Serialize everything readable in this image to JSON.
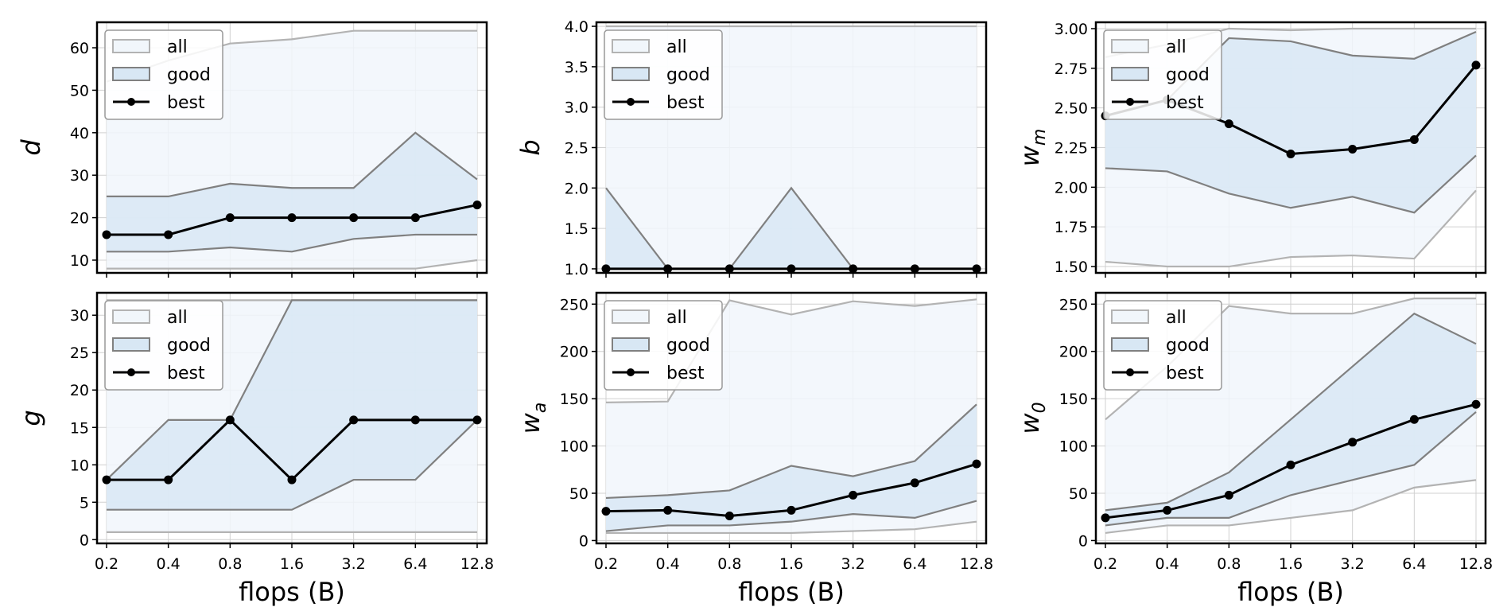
{
  "figure": {
    "x_ticks": [
      "0.2",
      "0.4",
      "0.8",
      "1.6",
      "3.2",
      "6.4",
      "12.8"
    ],
    "xlabel": "flops (B)",
    "legend": [
      "all",
      "good",
      "best"
    ]
  },
  "colors": {
    "all_fill": "#f1f6fb",
    "good_fill": "#d8e7f4",
    "all_line": "#b3b3b3",
    "good_line": "#808080",
    "best_line": "#000000",
    "grid": "#d0d0d0"
  },
  "chart_data": [
    {
      "type": "line",
      "ylabel": "d",
      "ylabel_sub": "",
      "x": [
        0.2,
        0.4,
        0.8,
        1.6,
        3.2,
        6.4,
        12.8
      ],
      "ylim": [
        7,
        66
      ],
      "yticks": [
        10,
        20,
        30,
        40,
        50,
        60
      ],
      "ytick_labels": [
        "10",
        "20",
        "30",
        "40",
        "50",
        "60"
      ],
      "all_min": [
        8,
        8,
        8,
        8,
        8,
        8,
        10
      ],
      "all_max": [
        52,
        57,
        61,
        62,
        64,
        64,
        64
      ],
      "good_min": [
        12,
        12,
        13,
        12,
        15,
        16,
        16
      ],
      "good_max": [
        25,
        25,
        28,
        27,
        27,
        40,
        29
      ],
      "best": [
        16,
        16,
        20,
        20,
        20,
        20,
        23
      ]
    },
    {
      "type": "line",
      "ylabel": "b",
      "ylabel_sub": "",
      "x": [
        0.2,
        0.4,
        0.8,
        1.6,
        3.2,
        6.4,
        12.8
      ],
      "ylim": [
        0.95,
        4.05
      ],
      "yticks": [
        1.0,
        1.5,
        2.0,
        2.5,
        3.0,
        3.5,
        4.0
      ],
      "ytick_labels": [
        "1.0",
        "1.5",
        "2.0",
        "2.5",
        "3.0",
        "3.5",
        "4.0"
      ],
      "all_min": [
        1,
        1,
        1,
        1,
        1,
        1,
        1
      ],
      "all_max": [
        4,
        4,
        4,
        4,
        4,
        4,
        4
      ],
      "good_min": [
        1,
        1,
        1,
        1,
        1,
        1,
        1
      ],
      "good_max": [
        2,
        1,
        1,
        2,
        1,
        1,
        1
      ],
      "best": [
        1,
        1,
        1,
        1,
        1,
        1,
        1
      ]
    },
    {
      "type": "line",
      "ylabel": "w",
      "ylabel_sub": "m",
      "x": [
        0.2,
        0.4,
        0.8,
        1.6,
        3.2,
        6.4,
        12.8
      ],
      "ylim": [
        1.46,
        3.04
      ],
      "yticks": [
        1.5,
        1.75,
        2.0,
        2.25,
        2.5,
        2.75,
        3.0
      ],
      "ytick_labels": [
        "1.50",
        "1.75",
        "2.00",
        "2.25",
        "2.50",
        "2.75",
        "3.00"
      ],
      "all_min": [
        1.53,
        1.5,
        1.5,
        1.56,
        1.57,
        1.55,
        1.98
      ],
      "all_max": [
        2.82,
        2.9,
        3.0,
        2.99,
        3.0,
        3.0,
        3.0
      ],
      "good_min": [
        2.12,
        2.1,
        1.96,
        1.87,
        1.94,
        1.84,
        2.2
      ],
      "good_max": [
        2.45,
        2.55,
        2.94,
        2.92,
        2.83,
        2.81,
        2.98
      ],
      "best": [
        2.45,
        2.55,
        2.4,
        2.21,
        2.24,
        2.3,
        2.77
      ]
    },
    {
      "type": "line",
      "ylabel": "g",
      "ylabel_sub": "",
      "x": [
        0.2,
        0.4,
        0.8,
        1.6,
        3.2,
        6.4,
        12.8
      ],
      "ylim": [
        -0.5,
        33
      ],
      "yticks": [
        0,
        5,
        10,
        15,
        20,
        25,
        30
      ],
      "ytick_labels": [
        "0",
        "5",
        "10",
        "15",
        "20",
        "25",
        "30"
      ],
      "all_min": [
        1,
        1,
        1,
        1,
        1,
        1,
        1
      ],
      "all_max": [
        32,
        32,
        32,
        32,
        32,
        32,
        32
      ],
      "good_min": [
        4,
        4,
        4,
        4,
        8,
        8,
        16
      ],
      "good_max": [
        8,
        16,
        16,
        32,
        32,
        32,
        32
      ],
      "best": [
        8,
        8,
        16,
        8,
        16,
        16,
        16
      ]
    },
    {
      "type": "line",
      "ylabel": "w",
      "ylabel_sub": "a",
      "x": [
        0.2,
        0.4,
        0.8,
        1.6,
        3.2,
        6.4,
        12.8
      ],
      "ylim": [
        -3,
        262
      ],
      "yticks": [
        0,
        50,
        100,
        150,
        200,
        250
      ],
      "ytick_labels": [
        "0",
        "50",
        "100",
        "150",
        "200",
        "250"
      ],
      "all_min": [
        8,
        8,
        8,
        8,
        10,
        12,
        20
      ],
      "all_max": [
        146,
        147,
        254,
        239,
        253,
        248,
        255
      ],
      "good_min": [
        10,
        16,
        16,
        20,
        28,
        24,
        42
      ],
      "good_max": [
        45,
        48,
        53,
        79,
        68,
        84,
        144
      ],
      "best": [
        31,
        32,
        26,
        32,
        48,
        61,
        81
      ]
    },
    {
      "type": "line",
      "ylabel": "w",
      "ylabel_sub": "0",
      "x": [
        0.2,
        0.4,
        0.8,
        1.6,
        3.2,
        6.4,
        12.8
      ],
      "ylim": [
        -3,
        262
      ],
      "yticks": [
        0,
        50,
        100,
        150,
        200,
        250
      ],
      "ytick_labels": [
        "0",
        "50",
        "100",
        "150",
        "200",
        "250"
      ],
      "all_min": [
        8,
        16,
        16,
        24,
        32,
        56,
        64
      ],
      "all_max": [
        128,
        184,
        248,
        240,
        240,
        256,
        256
      ],
      "good_min": [
        16,
        24,
        24,
        48,
        64,
        80,
        136
      ],
      "good_max": [
        32,
        40,
        72,
        128,
        184,
        240,
        208
      ],
      "best": [
        24,
        32,
        48,
        80,
        104,
        128,
        144
      ]
    }
  ]
}
